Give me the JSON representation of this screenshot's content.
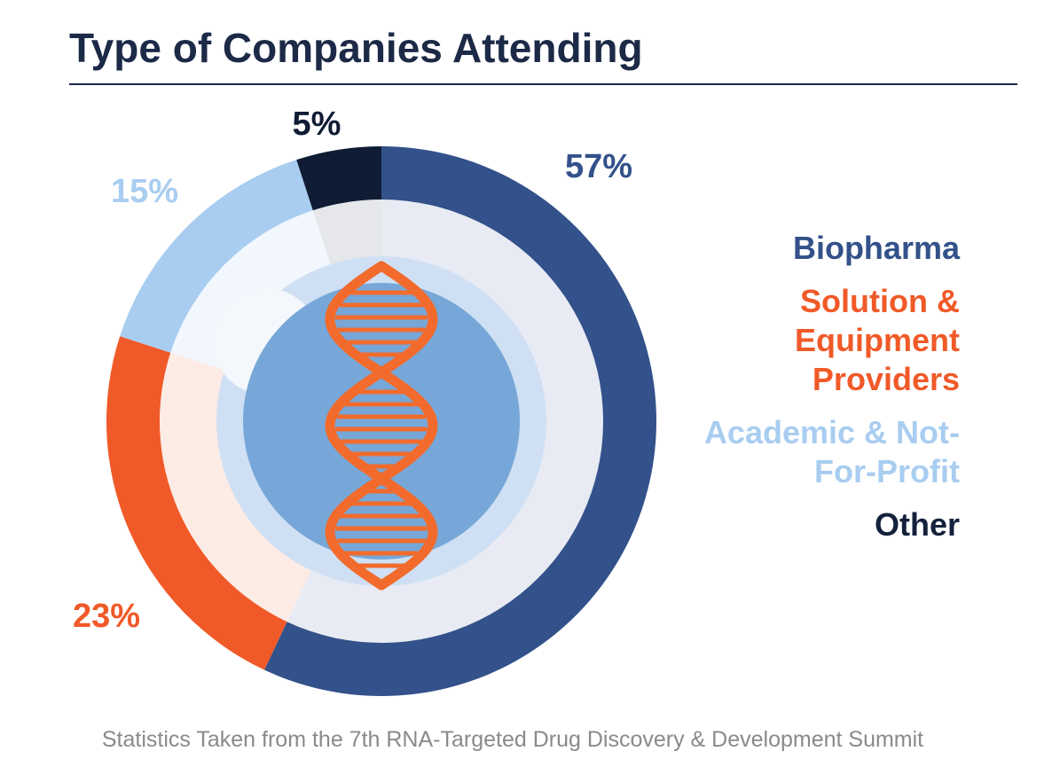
{
  "chart_data": {
    "type": "donut",
    "title": "Type of Companies Attending",
    "categories": [
      "Biopharma",
      "Solution & Equipment Providers",
      "Academic & Not-For-Profit",
      "Other"
    ],
    "values": [
      57,
      23,
      15,
      5
    ],
    "value_labels": [
      "57%",
      "23%",
      "15%",
      "5%"
    ],
    "colors": [
      "#33518a",
      "#f05a28",
      "#a8cdf0",
      "#0f1c33"
    ],
    "source": "Statistics Taken from the 7th RNA-Targeted Drug Discovery & Development Summit"
  }
}
